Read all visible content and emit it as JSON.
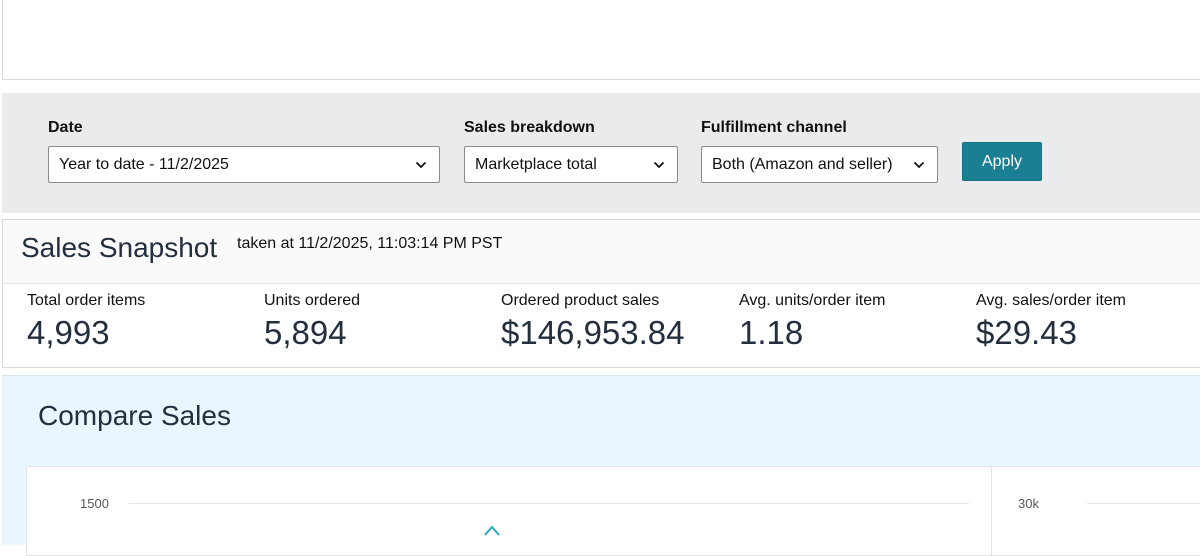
{
  "filters": {
    "date": {
      "label": "Date",
      "value": "Year to date - 11/2/2025"
    },
    "sales_breakdown": {
      "label": "Sales breakdown",
      "value": "Marketplace total"
    },
    "fulfillment_channel": {
      "label": "Fulfillment channel",
      "value": "Both (Amazon and seller)"
    },
    "apply_label": "Apply"
  },
  "snapshot": {
    "title": "Sales Snapshot",
    "subtitle": "taken at 11/2/2025, 11:03:14 PM PST",
    "metrics": [
      {
        "label": "Total order items",
        "value": "4,993"
      },
      {
        "label": "Units ordered",
        "value": "5,894"
      },
      {
        "label": "Ordered product sales",
        "value": "$146,953.84"
      },
      {
        "label": "Avg. units/order item",
        "value": "1.18"
      },
      {
        "label": "Avg. sales/order item",
        "value": "$29.43"
      }
    ]
  },
  "compare": {
    "title": "Compare Sales",
    "left_chart_tick": "1500",
    "right_chart_tick": "30k"
  },
  "colors": {
    "accent": "#1a7f93",
    "filter_bg": "#e9ebed",
    "compare_bg": "#eaf6fd",
    "chart_line": "#2aa8c2"
  }
}
